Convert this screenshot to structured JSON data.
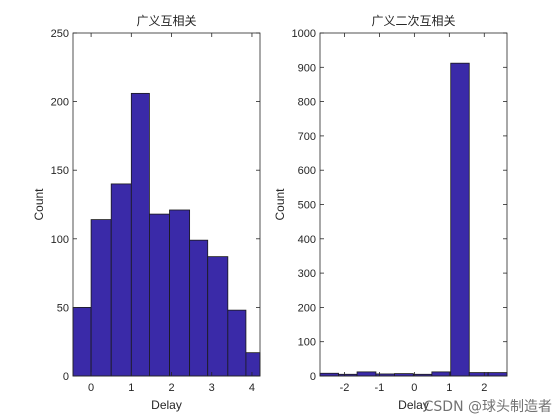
{
  "chart_data": [
    {
      "type": "bar",
      "title": "广义互相关",
      "xlabel": "Delay",
      "ylabel": "Count",
      "xlim": [
        -0.45,
        4.2
      ],
      "ylim": [
        0,
        250
      ],
      "xticks": [
        0,
        1,
        2,
        3,
        4
      ],
      "xtick_labels": [
        "0",
        "1",
        "2",
        "3",
        "4"
      ],
      "yticks": [
        0,
        50,
        100,
        150,
        200,
        250
      ],
      "ytick_labels": [
        "0",
        "50",
        "100",
        "150",
        "200",
        "250"
      ],
      "bin_edges": [
        -0.45,
        0.0,
        0.5,
        1.0,
        1.45,
        1.95,
        2.45,
        2.9,
        3.4,
        3.85,
        4.2
      ],
      "values": [
        50,
        114,
        140,
        206,
        118,
        121,
        99,
        87,
        48,
        17
      ],
      "bar_color": "#3a2aa8",
      "grid": false
    },
    {
      "type": "bar",
      "title": "广义二次互相关",
      "xlabel": "Delay",
      "ylabel": "Count",
      "xlim": [
        -2.7,
        2.65
      ],
      "ylim": [
        0,
        1000
      ],
      "xticks": [
        -2,
        -1,
        0,
        1,
        2
      ],
      "xtick_labels": [
        "-2",
        "-1",
        "0",
        "1",
        "2"
      ],
      "yticks": [
        0,
        100,
        200,
        300,
        400,
        500,
        600,
        700,
        800,
        900,
        1000
      ],
      "ytick_labels": [
        "0",
        "100",
        "200",
        "300",
        "400",
        "500",
        "600",
        "700",
        "800",
        "900",
        "1000"
      ],
      "bin_edges": [
        -2.7,
        -2.17,
        -1.64,
        -1.1,
        -0.57,
        -0.03,
        0.5,
        1.04,
        1.57,
        2.11,
        2.65
      ],
      "values": [
        8,
        5,
        12,
        6,
        7,
        5,
        12,
        912,
        10,
        10
      ],
      "bar_color": "#3a2aa8",
      "grid": false
    }
  ],
  "watermark": "CSDN @球头制造者"
}
